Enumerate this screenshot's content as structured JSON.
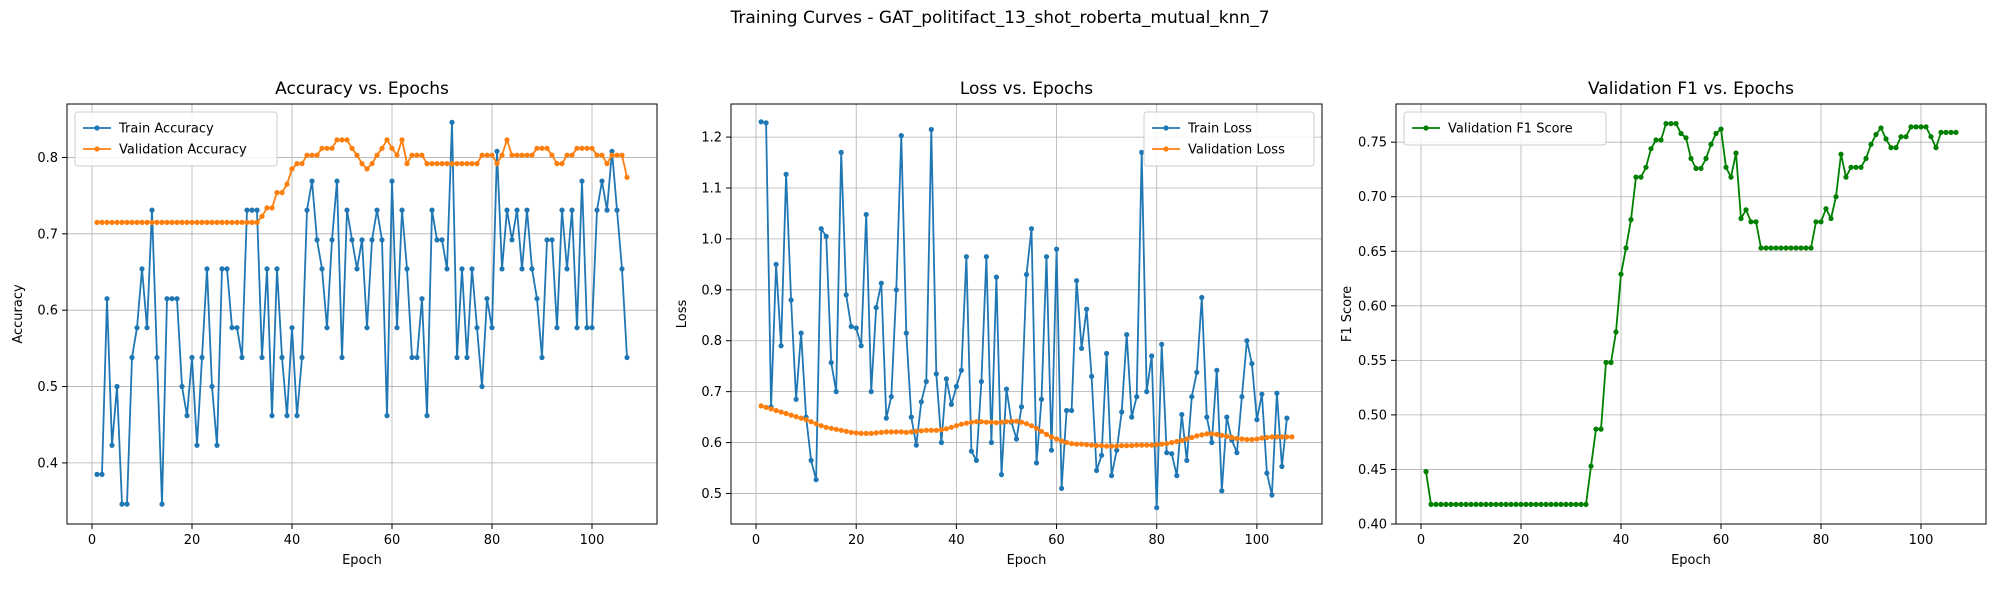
{
  "suptitle": "Training Curves - GAT_politifact_13_shot_roberta_mutual_knn_7",
  "chart_data": [
    {
      "type": "line",
      "title": "Accuracy vs. Epochs",
      "xlabel": "Epoch",
      "ylabel": "Accuracy",
      "xlim": [
        -5,
        113
      ],
      "ylim": [
        0.32,
        0.87
      ],
      "xticks": [
        0,
        20,
        40,
        60,
        80,
        100
      ],
      "yticks": [
        0.4,
        0.5,
        0.6,
        0.7,
        0.8
      ],
      "ytick_labels": [
        "0.4",
        "0.5",
        "0.6",
        "0.7",
        "0.8"
      ],
      "grid": true,
      "legend_loc": "top-left",
      "x": [
        1,
        2,
        3,
        4,
        5,
        6,
        7,
        8,
        9,
        10,
        11,
        12,
        13,
        14,
        15,
        16,
        17,
        18,
        19,
        20,
        21,
        22,
        23,
        24,
        25,
        26,
        27,
        28,
        29,
        30,
        31,
        32,
        33,
        34,
        35,
        36,
        37,
        38,
        39,
        40,
        41,
        42,
        43,
        44,
        45,
        46,
        47,
        48,
        49,
        50,
        51,
        52,
        53,
        54,
        55,
        56,
        57,
        58,
        59,
        60,
        61,
        62,
        63,
        64,
        65,
        66,
        67,
        68,
        69,
        70,
        71,
        72,
        73,
        74,
        75,
        76,
        77,
        78,
        79,
        80,
        81,
        82,
        83,
        84,
        85,
        86,
        87,
        88,
        89,
        90,
        91,
        92,
        93,
        94,
        95,
        96,
        97,
        98,
        99,
        100,
        101,
        102,
        103,
        104,
        105,
        106,
        107
      ],
      "series": [
        {
          "name": "Train Accuracy",
          "color": "#1f77b4",
          "values": [
            0.385,
            0.385,
            0.615,
            0.423,
            0.5,
            0.346,
            0.346,
            0.538,
            0.577,
            0.654,
            0.577,
            0.731,
            0.538,
            0.346,
            0.615,
            0.615,
            0.615,
            0.5,
            0.462,
            0.538,
            0.423,
            0.538,
            0.654,
            0.5,
            0.423,
            0.654,
            0.654,
            0.577,
            0.577,
            0.538,
            0.731,
            0.731,
            0.731,
            0.538,
            0.654,
            0.462,
            0.654,
            0.538,
            0.462,
            0.577,
            0.462,
            0.538,
            0.731,
            0.769,
            0.692,
            0.654,
            0.577,
            0.692,
            0.769,
            0.538,
            0.731,
            0.692,
            0.654,
            0.692,
            0.577,
            0.692,
            0.731,
            0.692,
            0.462,
            0.769,
            0.577,
            0.731,
            0.654,
            0.538,
            0.538,
            0.615,
            0.462,
            0.731,
            0.692,
            0.692,
            0.654,
            0.846,
            0.538,
            0.654,
            0.538,
            0.654,
            0.577,
            0.5,
            0.615,
            0.577,
            0.808,
            0.654,
            0.731,
            0.692,
            0.731,
            0.654,
            0.731,
            0.654,
            0.615,
            0.538,
            0.692,
            0.692,
            0.577,
            0.731,
            0.654,
            0.731,
            0.577,
            0.769,
            0.577,
            0.577,
            0.731,
            0.769,
            0.731,
            0.808,
            0.731,
            0.654,
            0.538
          ]
        },
        {
          "name": "Validation Accuracy",
          "color": "#ff7f0e",
          "values": [
            0.715,
            0.715,
            0.715,
            0.715,
            0.715,
            0.715,
            0.715,
            0.715,
            0.715,
            0.715,
            0.715,
            0.715,
            0.715,
            0.715,
            0.715,
            0.715,
            0.715,
            0.715,
            0.715,
            0.715,
            0.715,
            0.715,
            0.715,
            0.715,
            0.715,
            0.715,
            0.715,
            0.715,
            0.715,
            0.715,
            0.715,
            0.715,
            0.715,
            0.723,
            0.734,
            0.734,
            0.754,
            0.754,
            0.765,
            0.785,
            0.792,
            0.792,
            0.803,
            0.803,
            0.803,
            0.812,
            0.812,
            0.812,
            0.823,
            0.823,
            0.823,
            0.812,
            0.803,
            0.792,
            0.785,
            0.792,
            0.803,
            0.812,
            0.823,
            0.812,
            0.803,
            0.823,
            0.792,
            0.803,
            0.803,
            0.803,
            0.792,
            0.792,
            0.792,
            0.792,
            0.792,
            0.792,
            0.792,
            0.792,
            0.792,
            0.792,
            0.792,
            0.803,
            0.803,
            0.803,
            0.792,
            0.803,
            0.823,
            0.803,
            0.803,
            0.803,
            0.803,
            0.803,
            0.812,
            0.812,
            0.812,
            0.803,
            0.792,
            0.792,
            0.803,
            0.803,
            0.812,
            0.812,
            0.812,
            0.812,
            0.803,
            0.803,
            0.792,
            0.803,
            0.803,
            0.803,
            0.774
          ]
        }
      ]
    },
    {
      "type": "line",
      "title": "Loss vs. Epochs",
      "xlabel": "Epoch",
      "ylabel": "Loss",
      "xlim": [
        -5,
        113
      ],
      "ylim": [
        0.44,
        1.265
      ],
      "xticks": [
        0,
        20,
        40,
        60,
        80,
        100
      ],
      "yticks": [
        0.5,
        0.6,
        0.7,
        0.8,
        0.9,
        1.0,
        1.1,
        1.2
      ],
      "ytick_labels": [
        "0.5",
        "0.6",
        "0.7",
        "0.8",
        "0.9",
        "1.0",
        "1.1",
        "1.2"
      ],
      "grid": true,
      "legend_loc": "top-right",
      "x": [
        1,
        2,
        3,
        4,
        5,
        6,
        7,
        8,
        9,
        10,
        11,
        12,
        13,
        14,
        15,
        16,
        17,
        18,
        19,
        20,
        21,
        22,
        23,
        24,
        25,
        26,
        27,
        28,
        29,
        30,
        31,
        32,
        33,
        34,
        35,
        36,
        37,
        38,
        39,
        40,
        41,
        42,
        43,
        44,
        45,
        46,
        47,
        48,
        49,
        50,
        51,
        52,
        53,
        54,
        55,
        56,
        57,
        58,
        59,
        60,
        61,
        62,
        63,
        64,
        65,
        66,
        67,
        68,
        69,
        70,
        71,
        72,
        73,
        74,
        75,
        76,
        77,
        78,
        79,
        80,
        81,
        82,
        83,
        84,
        85,
        86,
        87,
        88,
        89,
        90,
        91,
        92,
        93,
        94,
        95,
        96,
        97,
        98,
        99,
        100,
        101,
        102,
        103,
        104,
        105,
        106,
        107
      ],
      "series": [
        {
          "name": "Train Loss",
          "color": "#1f77b4",
          "values": [
            1.23,
            1.228,
            0.67,
            0.95,
            0.79,
            1.127,
            0.88,
            0.685,
            0.815,
            0.65,
            0.565,
            0.527,
            1.02,
            1.005,
            0.757,
            0.7,
            1.17,
            0.89,
            0.828,
            0.825,
            0.79,
            1.048,
            0.7,
            0.865,
            0.913,
            0.648,
            0.69,
            0.9,
            1.203,
            0.815,
            0.65,
            0.595,
            0.68,
            0.72,
            1.215,
            0.735,
            0.6,
            0.725,
            0.675,
            0.71,
            0.742,
            0.965,
            0.583,
            0.565,
            0.72,
            0.965,
            0.6,
            0.925,
            0.537,
            0.705,
            0.64,
            0.607,
            0.67,
            0.93,
            1.02,
            0.56,
            0.685,
            0.965,
            0.585,
            0.98,
            0.51,
            0.663,
            0.663,
            0.918,
            0.785,
            0.862,
            0.73,
            0.545,
            0.575,
            0.775,
            0.535,
            0.585,
            0.66,
            0.812,
            0.65,
            0.69,
            1.17,
            0.7,
            0.77,
            0.472,
            0.793,
            0.58,
            0.578,
            0.535,
            0.655,
            0.565,
            0.69,
            0.738,
            0.885,
            0.65,
            0.6,
            0.742,
            0.505,
            0.65,
            0.605,
            0.58,
            0.69,
            0.8,
            0.755,
            0.645,
            0.695,
            0.54,
            0.497,
            0.697,
            0.553,
            0.648,
            null
          ]
        },
        {
          "name": "Validation Loss",
          "color": "#ff7f0e",
          "values": [
            0.672,
            0.669,
            0.666,
            0.663,
            0.66,
            0.657,
            0.654,
            0.651,
            0.648,
            0.645,
            0.641,
            0.637,
            0.633,
            0.63,
            0.628,
            0.626,
            0.624,
            0.622,
            0.62,
            0.619,
            0.618,
            0.618,
            0.618,
            0.619,
            0.62,
            0.621,
            0.621,
            0.621,
            0.621,
            0.62,
            0.621,
            0.622,
            0.623,
            0.624,
            0.624,
            0.624,
            0.625,
            0.627,
            0.63,
            0.633,
            0.636,
            0.638,
            0.64,
            0.641,
            0.641,
            0.64,
            0.64,
            0.639,
            0.64,
            0.641,
            0.642,
            0.642,
            0.64,
            0.637,
            0.633,
            0.628,
            0.622,
            0.616,
            0.611,
            0.607,
            0.603,
            0.6,
            0.598,
            0.597,
            0.597,
            0.596,
            0.595,
            0.594,
            0.594,
            0.593,
            0.593,
            0.593,
            0.594,
            0.594,
            0.594,
            0.595,
            0.595,
            0.595,
            0.595,
            0.596,
            0.597,
            0.598,
            0.6,
            0.602,
            0.604,
            0.607,
            0.61,
            0.613,
            0.615,
            0.617,
            0.617,
            0.616,
            0.614,
            0.612,
            0.61,
            0.608,
            0.607,
            0.606,
            0.606,
            0.607,
            0.609,
            0.61,
            0.611,
            0.611,
            0.611,
            0.611,
            0.611
          ]
        }
      ]
    },
    {
      "type": "line",
      "title": "Validation F1 vs. Epochs",
      "xlabel": "Epoch",
      "ylabel": "F1 Score",
      "xlim": [
        -5,
        113
      ],
      "ylim": [
        0.4,
        0.785
      ],
      "xticks": [
        0,
        20,
        40,
        60,
        80,
        100
      ],
      "yticks": [
        0.4,
        0.45,
        0.5,
        0.55,
        0.6,
        0.65,
        0.7,
        0.75
      ],
      "ytick_labels": [
        "0.40",
        "0.45",
        "0.50",
        "0.55",
        "0.60",
        "0.65",
        "0.70",
        "0.75"
      ],
      "grid": true,
      "legend_loc": "top-left",
      "x": [
        1,
        2,
        3,
        4,
        5,
        6,
        7,
        8,
        9,
        10,
        11,
        12,
        13,
        14,
        15,
        16,
        17,
        18,
        19,
        20,
        21,
        22,
        23,
        24,
        25,
        26,
        27,
        28,
        29,
        30,
        31,
        32,
        33,
        34,
        35,
        36,
        37,
        38,
        39,
        40,
        41,
        42,
        43,
        44,
        45,
        46,
        47,
        48,
        49,
        50,
        51,
        52,
        53,
        54,
        55,
        56,
        57,
        58,
        59,
        60,
        61,
        62,
        63,
        64,
        65,
        66,
        67,
        68,
        69,
        70,
        71,
        72,
        73,
        74,
        75,
        76,
        77,
        78,
        79,
        80,
        81,
        82,
        83,
        84,
        85,
        86,
        87,
        88,
        89,
        90,
        91,
        92,
        93,
        94,
        95,
        96,
        97,
        98,
        99,
        100,
        101,
        102,
        103,
        104,
        105,
        106,
        107
      ],
      "series": [
        {
          "name": "Validation F1 Score",
          "color": "#008000",
          "values": [
            0.448,
            0.418,
            0.418,
            0.418,
            0.418,
            0.418,
            0.418,
            0.418,
            0.418,
            0.418,
            0.418,
            0.418,
            0.418,
            0.418,
            0.418,
            0.418,
            0.418,
            0.418,
            0.418,
            0.418,
            0.418,
            0.418,
            0.418,
            0.418,
            0.418,
            0.418,
            0.418,
            0.418,
            0.418,
            0.418,
            0.418,
            0.418,
            0.418,
            0.453,
            0.487,
            0.487,
            0.548,
            0.548,
            0.576,
            0.629,
            0.653,
            0.679,
            0.718,
            0.718,
            0.727,
            0.744,
            0.752,
            0.752,
            0.767,
            0.767,
            0.767,
            0.758,
            0.754,
            0.735,
            0.726,
            0.726,
            0.735,
            0.748,
            0.758,
            0.762,
            0.727,
            0.718,
            0.74,
            0.68,
            0.688,
            0.677,
            0.677,
            0.653,
            0.653,
            0.653,
            0.653,
            0.653,
            0.653,
            0.653,
            0.653,
            0.653,
            0.653,
            0.653,
            0.677,
            0.677,
            0.689,
            0.68,
            0.7,
            0.739,
            0.718,
            0.727,
            0.727,
            0.727,
            0.735,
            0.748,
            0.757,
            0.763,
            0.753,
            0.745,
            0.745,
            0.755,
            0.755,
            0.764,
            0.764,
            0.764,
            0.764,
            0.755,
            0.745,
            0.759,
            0.759,
            0.759,
            0.759
          ]
        }
      ]
    }
  ]
}
